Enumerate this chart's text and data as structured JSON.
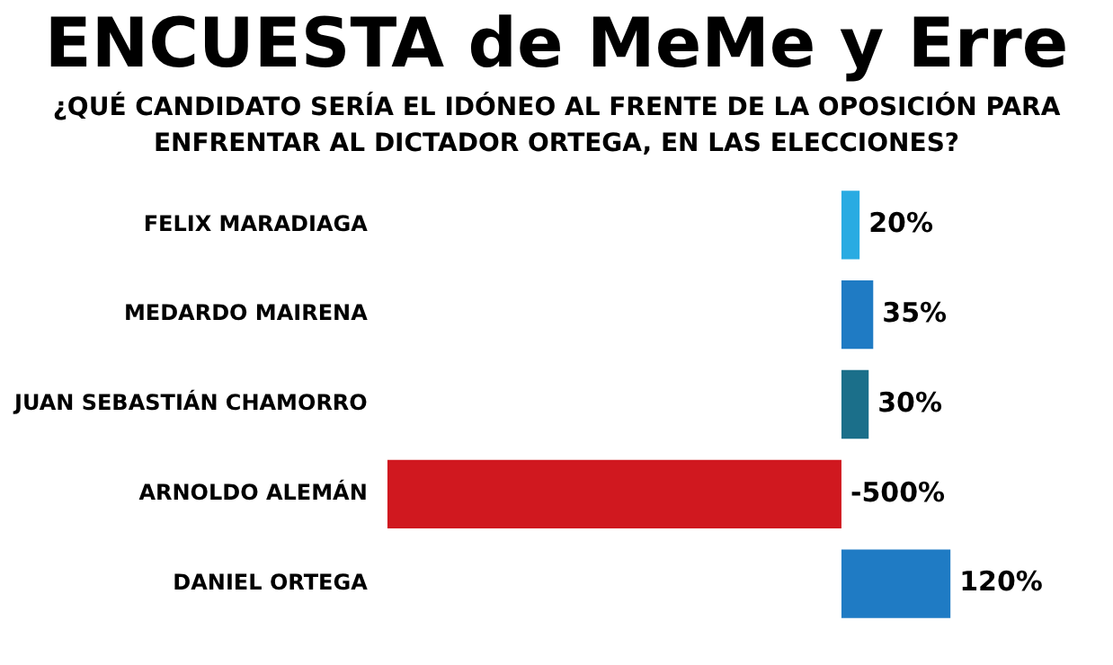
{
  "chart_data": {
    "type": "bar",
    "orientation": "horizontal",
    "title": "ENCUESTA de MeMe y Erre",
    "subtitle": "¿QUÉ CANDIDATO SERÍA EL IDÓNEO AL FRENTE DE LA OPOSICIÓN PARA ENFRENTAR AL DICTADOR ORTEGA, EN LAS ELECCIONES?",
    "categories": [
      "FELIX MARADIAGA",
      "MEDARDO MAIRENA",
      "JUAN SEBASTIÁN CHAMORRO",
      "ARNOLDO ALEMÁN",
      "DANIEL ORTEGA"
    ],
    "values": [
      20,
      35,
      30,
      -500,
      120
    ],
    "colors": [
      "#29abe2",
      "#1f7bc4",
      "#1b6f8a",
      "#d0181f",
      "#1f7bc4"
    ],
    "value_labels": [
      "20%",
      "35%",
      "30%",
      "-500%",
      "120%"
    ],
    "grid": false,
    "legend": false
  }
}
